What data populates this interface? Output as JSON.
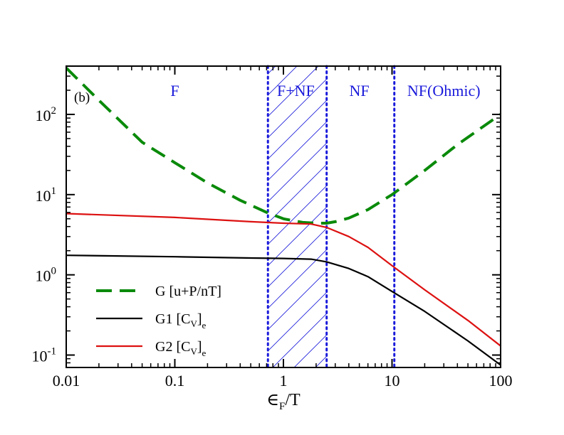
{
  "chart_data": {
    "type": "line",
    "panel_label": "(b)",
    "title": "",
    "xlabel": {
      "main": "∈",
      "sub": "F",
      "tail": "/T"
    },
    "ylabel": "",
    "xscale": "log",
    "yscale": "log",
    "xlim": [
      0.01,
      100
    ],
    "ylim": [
      0.07,
      400
    ],
    "x_ticks": [
      {
        "value": 0.01,
        "label": "0.01"
      },
      {
        "value": 0.1,
        "label": "0.1"
      },
      {
        "value": 1,
        "label": "1"
      },
      {
        "value": 10,
        "label": "10"
      },
      {
        "value": 100,
        "label": "100"
      }
    ],
    "y_ticks": [
      {
        "value": 0.1,
        "base": "10",
        "exp": "-1"
      },
      {
        "value": 1,
        "base": "10",
        "exp": "0"
      },
      {
        "value": 10,
        "base": "10",
        "exp": "1"
      },
      {
        "value": 100,
        "base": "10",
        "exp": "2"
      }
    ],
    "regions": [
      {
        "label": "F",
        "x": 0.1
      },
      {
        "label": "F+NF",
        "x": 1.3
      },
      {
        "label": "NF",
        "x": 5.0
      },
      {
        "label": "NF(Ohmic)",
        "x": 30
      }
    ],
    "boundaries": [
      0.72,
      2.5,
      10.5
    ],
    "hatched_range": [
      0.72,
      2.5
    ],
    "series": [
      {
        "name": "G [u+P/nT]",
        "color": "#0a8a0a",
        "style": "dashed",
        "points": [
          [
            0.01,
            380
          ],
          [
            0.02,
            150
          ],
          [
            0.05,
            45
          ],
          [
            0.1,
            25
          ],
          [
            0.2,
            14
          ],
          [
            0.4,
            8.5
          ],
          [
            0.7,
            6.0
          ],
          [
            1.0,
            5.0
          ],
          [
            1.5,
            4.5
          ],
          [
            2.0,
            4.4
          ],
          [
            2.5,
            4.4
          ],
          [
            3.0,
            4.6
          ],
          [
            4.0,
            5.1
          ],
          [
            6.0,
            6.5
          ],
          [
            10,
            10
          ],
          [
            20,
            20
          ],
          [
            40,
            42
          ],
          [
            100,
            100
          ]
        ]
      },
      {
        "name": "G1 [C_V]_e",
        "color": "#000000",
        "style": "solid",
        "points": [
          [
            0.01,
            1.75
          ],
          [
            0.1,
            1.68
          ],
          [
            0.5,
            1.62
          ],
          [
            1.0,
            1.6
          ],
          [
            1.8,
            1.57
          ],
          [
            2.5,
            1.45
          ],
          [
            4.0,
            1.2
          ],
          [
            6.0,
            0.95
          ],
          [
            10,
            0.62
          ],
          [
            20,
            0.35
          ],
          [
            50,
            0.15
          ],
          [
            100,
            0.075
          ]
        ]
      },
      {
        "name": "G2 [C_V]_e",
        "color": "#dd1111",
        "style": "solid",
        "points": [
          [
            0.01,
            5.8
          ],
          [
            0.1,
            5.2
          ],
          [
            0.5,
            4.6
          ],
          [
            1.0,
            4.4
          ],
          [
            1.8,
            4.3
          ],
          [
            2.5,
            3.9
          ],
          [
            4.0,
            3.0
          ],
          [
            6.0,
            2.2
          ],
          [
            10,
            1.3
          ],
          [
            20,
            0.65
          ],
          [
            50,
            0.27
          ],
          [
            100,
            0.13
          ]
        ]
      }
    ],
    "legend": {
      "placement": "bottom-left",
      "entries": [
        {
          "text": "G [u+P/nT]",
          "sub": "",
          "tail": ""
        },
        {
          "text": "G1 [C",
          "sub": "V",
          "tail": "]",
          "sub2": "e"
        },
        {
          "text": "G2 [C",
          "sub": "V",
          "tail": "]",
          "sub2": "e"
        }
      ]
    },
    "colors": {
      "frame": "#000000",
      "boundary": "#1a1adb",
      "region_text": "#1a1adb",
      "hatch": "#1a1adb"
    }
  }
}
